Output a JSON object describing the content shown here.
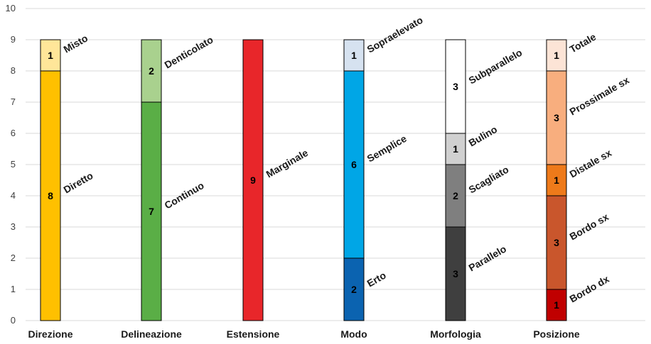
{
  "chart_data": {
    "type": "bar",
    "stacked": true,
    "ylim": [
      0,
      10
    ],
    "yticks": [
      0,
      1,
      2,
      3,
      4,
      5,
      6,
      7,
      8,
      9,
      10
    ],
    "grid": true,
    "categories": [
      "Direzione",
      "Delineazione",
      "Estensione",
      "Modo",
      "Morfologia",
      "Posizione"
    ],
    "stacks": [
      {
        "category": "Direzione",
        "segments": [
          {
            "label": "Diretto",
            "value": 8,
            "color": "#FFC000",
            "value_color": "#000000"
          },
          {
            "label": "Misto",
            "value": 1,
            "color": "#FFE699",
            "value_color": "#000000"
          }
        ]
      },
      {
        "category": "Delineazione",
        "segments": [
          {
            "label": "Continuo",
            "value": 7,
            "color": "#5AAE46",
            "value_color": "#000000"
          },
          {
            "label": "Denticolato",
            "value": 2,
            "color": "#A9D18E",
            "value_color": "#000000"
          }
        ]
      },
      {
        "category": "Estensione",
        "segments": [
          {
            "label": "Marginale",
            "value": 9,
            "color": "#E8262A",
            "value_color": "#000000"
          }
        ]
      },
      {
        "category": "Modo",
        "segments": [
          {
            "label": "Erto",
            "value": 2,
            "color": "#0B63B0",
            "value_color": "#000000"
          },
          {
            "label": "Semplice",
            "value": 6,
            "color": "#00A6E6",
            "value_color": "#000000"
          },
          {
            "label": "Sopraelevato",
            "value": 1,
            "color": "#D6E2F0",
            "value_color": "#000000"
          }
        ]
      },
      {
        "category": "Morfologia",
        "segments": [
          {
            "label": "Parallelo",
            "value": 3,
            "color": "#3F3F3F",
            "value_color": "#000000"
          },
          {
            "label": "Scagliato",
            "value": 2,
            "color": "#7F7F7F",
            "value_color": "#000000"
          },
          {
            "label": "Bulino",
            "value": 1,
            "color": "#D0D0D0",
            "value_color": "#000000"
          },
          {
            "label": "Subparallelo",
            "value": 3,
            "color": "#FFFFFF",
            "value_color": "#000000"
          }
        ]
      },
      {
        "category": "Posizione",
        "segments": [
          {
            "label": "Bordo dx",
            "value": 1,
            "color": "#C00000",
            "value_color": "#000000"
          },
          {
            "label": "Bordo sx",
            "value": 3,
            "color": "#C9562C",
            "value_color": "#000000"
          },
          {
            "label": "Distale sx",
            "value": 1,
            "color": "#EE7A1A",
            "value_color": "#000000"
          },
          {
            "label": "Prossimale sx",
            "value": 3,
            "color": "#F8AE7E",
            "value_color": "#000000"
          },
          {
            "label": "Totale",
            "value": 1,
            "color": "#FCE4D6",
            "value_color": "#000000"
          }
        ]
      }
    ]
  }
}
